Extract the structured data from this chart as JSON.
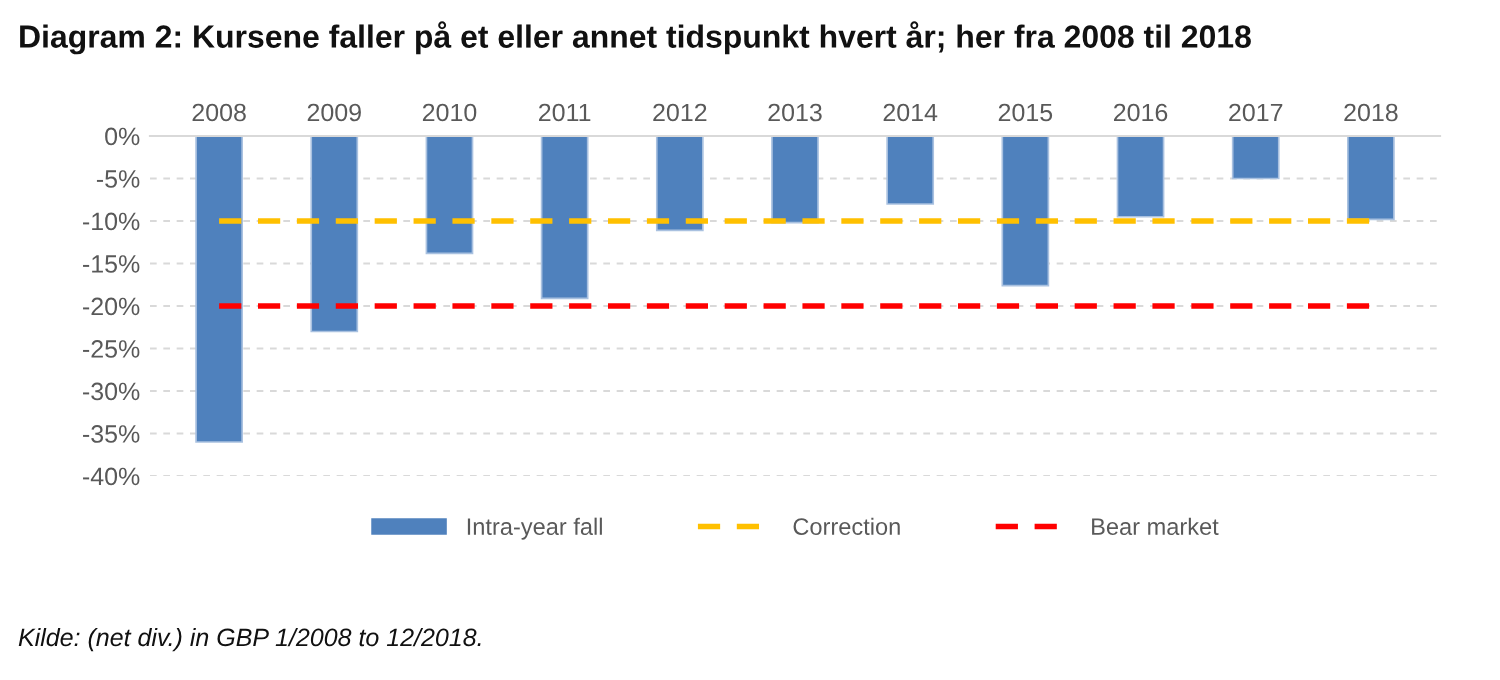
{
  "chart_data": {
    "type": "bar",
    "title": "Diagram 2: Kursene faller på et eller annet tidspunkt hvert år; her fra 2008 til 2018",
    "categories": [
      "2008",
      "2009",
      "2010",
      "2011",
      "2012",
      "2013",
      "2014",
      "2015",
      "2016",
      "2017",
      "2018"
    ],
    "series": [
      {
        "name": "Intra-year fall",
        "color": "#4f81bd",
        "values": [
          -36,
          -23,
          -13.8,
          -19.1,
          -11.1,
          -10.2,
          -8,
          -17.6,
          -9.5,
          -5,
          -9.8
        ]
      },
      {
        "name": "Correction",
        "type": "line",
        "color": "#ffc000",
        "line_style": "dashed",
        "values": [
          -10,
          -10,
          -10,
          -10,
          -10,
          -10,
          -10,
          -10,
          -10,
          -10,
          -10
        ]
      },
      {
        "name": "Bear market",
        "type": "line",
        "color": "#ff0000",
        "line_style": "dashed",
        "values": [
          -20,
          -20,
          -20,
          -20,
          -20,
          -20,
          -20,
          -20,
          -20,
          -20,
          -20
        ]
      }
    ],
    "ylim": [
      -40,
      0
    ],
    "yticks": [
      {
        "value": 0,
        "label": "0%"
      },
      {
        "value": -5,
        "label": "-5%"
      },
      {
        "value": -10,
        "label": "-10%"
      },
      {
        "value": -15,
        "label": "-15%"
      },
      {
        "value": -20,
        "label": "-20%"
      },
      {
        "value": -25,
        "label": "-25%"
      },
      {
        "value": -30,
        "label": "-30%"
      },
      {
        "value": -35,
        "label": "-35%"
      },
      {
        "value": -40,
        "label": "-40%"
      }
    ],
    "grid": "y",
    "legend": "bottom",
    "annotations": [
      "Kilde: (net div.) in GBP 1/2008 to 12/2018."
    ]
  }
}
